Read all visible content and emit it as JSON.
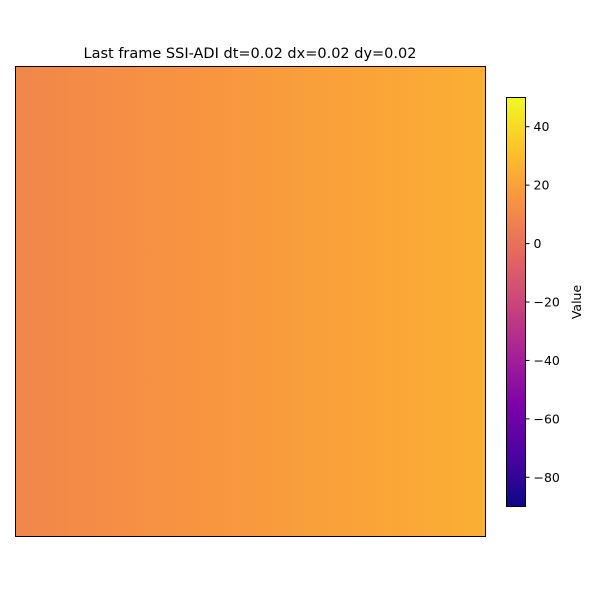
{
  "chart_data": {
    "type": "heatmap",
    "title": "Last frame SSI-ADI dt=0.02 dx=0.02 dy=0.02",
    "colormap": "plasma",
    "field_description": "values vary only along x; uniform along y",
    "field_values_left_to_right": [
      9.0,
      11.0,
      13.0,
      15.0,
      17.0,
      19.0,
      21.0,
      23.0,
      25.0
    ],
    "colorbar": {
      "label": "Value",
      "range": [
        -90,
        50
      ],
      "ticks": [
        40,
        20,
        0,
        -20,
        -40,
        -60,
        -80
      ],
      "tick_labels": [
        "40",
        "20",
        "0",
        "−20",
        "−40",
        "−60",
        "−80"
      ]
    },
    "axes_visible": false
  }
}
